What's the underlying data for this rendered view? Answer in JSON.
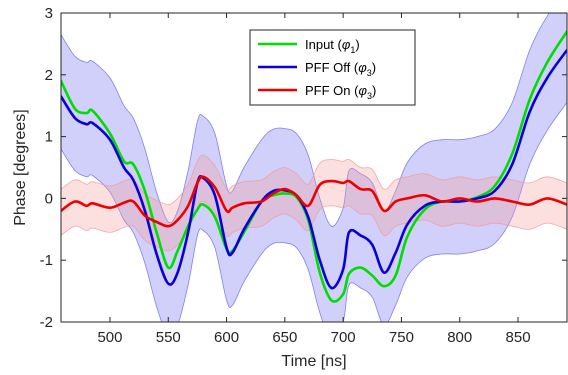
{
  "chart_data": {
    "type": "line",
    "title": "",
    "xlabel": "Time [ns]",
    "ylabel": "Phase [degrees]",
    "xlim": [
      458,
      892
    ],
    "ylim": [
      -2,
      3
    ],
    "xticks": [
      500,
      550,
      600,
      650,
      700,
      750,
      800,
      850
    ],
    "yticks": [
      -2,
      -1,
      0,
      1,
      2,
      3
    ],
    "grid": false,
    "legend_position": "top-center",
    "series": [
      {
        "name": "Input",
        "legend_label": {
          "prefix": "Input (",
          "symbol": "φ",
          "subscript": "1",
          "suffix": ")"
        },
        "color": "#00dd00",
        "x": [
          458,
          470,
          480,
          485,
          500,
          512,
          520,
          530,
          540,
          550,
          558,
          567,
          575,
          580,
          590,
          600,
          605,
          615,
          630,
          640,
          650,
          660,
          670,
          680,
          690,
          700,
          705,
          715,
          725,
          735,
          745,
          755,
          770,
          785,
          800,
          815,
          830,
          845,
          860,
          875,
          892
        ],
        "y": [
          1.9,
          1.45,
          1.38,
          1.42,
          1.05,
          0.6,
          0.55,
          0.12,
          -0.55,
          -1.12,
          -0.85,
          -0.45,
          -0.18,
          -0.1,
          -0.3,
          -0.82,
          -0.85,
          -0.55,
          -0.05,
          0.05,
          0.08,
          0.02,
          -0.35,
          -1.2,
          -1.65,
          -1.55,
          -1.22,
          -1.12,
          -1.25,
          -1.42,
          -1.25,
          -0.62,
          -0.18,
          -0.05,
          -0.05,
          0.02,
          0.2,
          0.72,
          1.6,
          2.2,
          2.7
        ]
      },
      {
        "name": "PFF Off",
        "legend_label": {
          "prefix": "PFF Off (",
          "symbol": "φ",
          "subscript": "3",
          "suffix": ")"
        },
        "color": "#0a00d8",
        "band": [
          1.0,
          0.85
        ],
        "band_color": "#6e6ef0",
        "x": [
          458,
          470,
          480,
          485,
          500,
          512,
          520,
          530,
          540,
          550,
          558,
          567,
          575,
          580,
          590,
          600,
          605,
          615,
          630,
          640,
          650,
          660,
          670,
          680,
          690,
          700,
          705,
          715,
          725,
          735,
          745,
          755,
          770,
          785,
          800,
          815,
          830,
          845,
          860,
          875,
          892
        ],
        "y": [
          1.65,
          1.3,
          1.2,
          1.22,
          0.95,
          0.5,
          0.3,
          -0.2,
          -0.9,
          -1.38,
          -1.2,
          -0.55,
          0.25,
          0.33,
          0.05,
          -0.8,
          -0.88,
          -0.5,
          -0.05,
          0.12,
          0.13,
          0.05,
          -0.3,
          -1.0,
          -1.45,
          -1.15,
          -0.55,
          -0.6,
          -0.75,
          -1.2,
          -0.88,
          -0.42,
          -0.12,
          -0.05,
          -0.05,
          0.0,
          0.12,
          0.55,
          1.4,
          1.95,
          2.4
        ]
      },
      {
        "name": "PFF On",
        "legend_label": {
          "prefix": "PFF On (",
          "symbol": "φ",
          "subscript": "3",
          "suffix": ")"
        },
        "color": "#ee0000",
        "band": [
          0.35,
          0.4
        ],
        "band_color": "#f59a9a",
        "x": [
          458,
          470,
          480,
          485,
          500,
          512,
          520,
          530,
          540,
          550,
          558,
          567,
          575,
          580,
          590,
          600,
          605,
          615,
          630,
          640,
          650,
          660,
          670,
          680,
          690,
          700,
          705,
          715,
          725,
          735,
          745,
          755,
          770,
          785,
          800,
          815,
          830,
          845,
          860,
          875,
          892
        ],
        "y": [
          -0.2,
          -0.05,
          -0.12,
          -0.08,
          -0.15,
          -0.07,
          -0.05,
          -0.28,
          -0.38,
          -0.45,
          -0.35,
          -0.12,
          0.25,
          0.35,
          0.18,
          -0.2,
          -0.15,
          -0.08,
          -0.05,
          0.08,
          0.15,
          0.05,
          -0.12,
          0.22,
          0.28,
          0.25,
          0.28,
          0.15,
          0.12,
          -0.2,
          -0.05,
          0.0,
          0.05,
          -0.05,
          0.0,
          -0.05,
          0.0,
          -0.05,
          -0.1,
          0.0,
          -0.1
        ]
      }
    ]
  }
}
